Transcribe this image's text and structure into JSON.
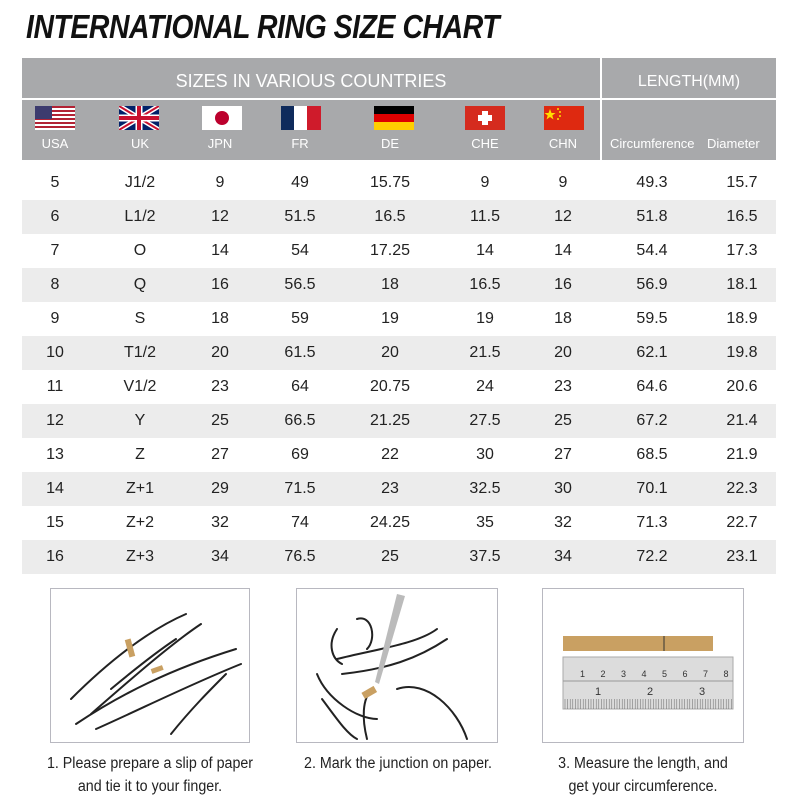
{
  "title": "INTERNATIONAL RING SIZE CHART",
  "header": {
    "sizes_label": "SIZES IN VARIOUS COUNTRIES",
    "length_label": "LENGTH(MM)",
    "countries": [
      {
        "label": "USA",
        "flag": "usa-flag"
      },
      {
        "label": "UK",
        "flag": "uk-flag"
      },
      {
        "label": "JPN",
        "flag": "japan-flag"
      },
      {
        "label": "FR",
        "flag": "france-flag"
      },
      {
        "label": "DE",
        "flag": "germany-flag"
      },
      {
        "label": "CHE",
        "flag": "switzerland-flag"
      },
      {
        "label": "CHN",
        "flag": "china-flag"
      }
    ],
    "circumference_label": "Circumference",
    "diameter_label": "Diameter"
  },
  "rows": [
    [
      "5",
      "J1/2",
      "9",
      "49",
      "15.75",
      "9",
      "9",
      "49.3",
      "15.7"
    ],
    [
      "6",
      "L1/2",
      "12",
      "51.5",
      "16.5",
      "11.5",
      "12",
      "51.8",
      "16.5"
    ],
    [
      "7",
      "O",
      "14",
      "54",
      "17.25",
      "14",
      "14",
      "54.4",
      "17.3"
    ],
    [
      "8",
      "Q",
      "16",
      "56.5",
      "18",
      "16.5",
      "16",
      "56.9",
      "18.1"
    ],
    [
      "9",
      "S",
      "18",
      "59",
      "19",
      "19",
      "18",
      "59.5",
      "18.9"
    ],
    [
      "10",
      "T1/2",
      "20",
      "61.5",
      "20",
      "21.5",
      "20",
      "62.1",
      "19.8"
    ],
    [
      "11",
      "V1/2",
      "23",
      "64",
      "20.75",
      "24",
      "23",
      "64.6",
      "20.6"
    ],
    [
      "12",
      "Y",
      "25",
      "66.5",
      "21.25",
      "27.5",
      "25",
      "67.2",
      "21.4"
    ],
    [
      "13",
      "Z",
      "27",
      "69",
      "22",
      "30",
      "27",
      "68.5",
      "21.9"
    ],
    [
      "14",
      "Z+1",
      "29",
      "71.5",
      "23",
      "32.5",
      "30",
      "70.1",
      "22.3"
    ],
    [
      "15",
      "Z+2",
      "32",
      "74",
      "24.25",
      "35",
      "32",
      "71.3",
      "22.7"
    ],
    [
      "16",
      "Z+3",
      "34",
      "76.5",
      "25",
      "37.5",
      "34",
      "72.2",
      "23.1"
    ]
  ],
  "steps": [
    {
      "line1": "1. Please prepare a slip of paper",
      "line2": "and tie it to your finger."
    },
    {
      "line1": "2. Mark the junction on paper.",
      "line2": ""
    },
    {
      "line1": "3. Measure the length, and",
      "line2": "get your circumference."
    }
  ],
  "ruler": {
    "cm_ticks": [
      "1",
      "2",
      "3",
      "4",
      "5",
      "6",
      "7",
      "8"
    ],
    "inch_ticks": [
      "1",
      "2",
      "3"
    ]
  },
  "colors": {
    "header_bg": "#a8a9ab",
    "stripe": "#ececec",
    "paper": "#c9a062"
  }
}
